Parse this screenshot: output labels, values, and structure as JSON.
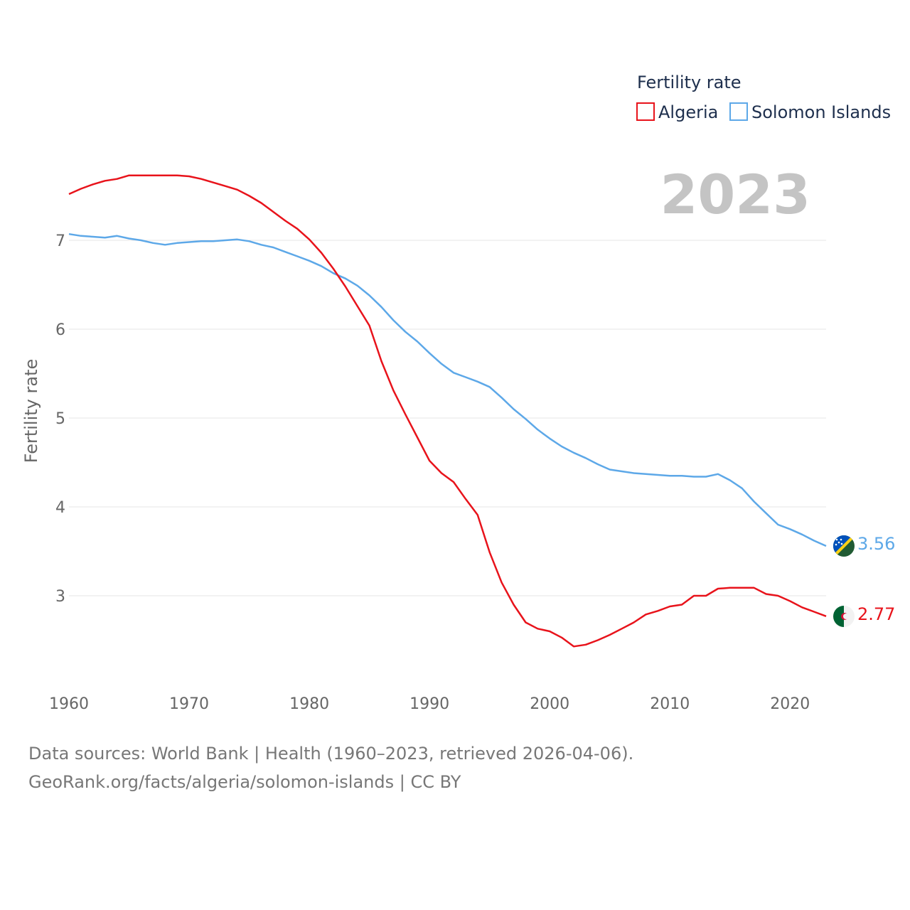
{
  "chart_data": {
    "type": "line",
    "title": "",
    "ylabel": "Fertility rate",
    "xlabel": "",
    "year_label": "2023",
    "legend": {
      "title": "Fertility rate",
      "placement": "top-right"
    },
    "xlim": [
      1960,
      2023
    ],
    "ylim": [
      2.0,
      7.9
    ],
    "x_ticks": [
      1960,
      1970,
      1980,
      1990,
      2000,
      2010,
      2020
    ],
    "y_ticks": [
      3,
      4,
      5,
      6,
      7
    ],
    "x": [
      1960,
      1961,
      1962,
      1963,
      1964,
      1965,
      1966,
      1967,
      1968,
      1969,
      1970,
      1971,
      1972,
      1973,
      1974,
      1975,
      1976,
      1977,
      1978,
      1979,
      1980,
      1981,
      1982,
      1983,
      1984,
      1985,
      1986,
      1987,
      1988,
      1989,
      1990,
      1991,
      1992,
      1993,
      1994,
      1995,
      1996,
      1997,
      1998,
      1999,
      2000,
      2001,
      2002,
      2003,
      2004,
      2005,
      2006,
      2007,
      2008,
      2009,
      2010,
      2011,
      2012,
      2013,
      2014,
      2015,
      2016,
      2017,
      2018,
      2019,
      2020,
      2021,
      2022,
      2023
    ],
    "series": [
      {
        "name": "Algeria",
        "color": "#e8131b",
        "end_label": "2.77",
        "values": [
          7.52,
          7.58,
          7.63,
          7.67,
          7.69,
          7.73,
          7.73,
          7.73,
          7.73,
          7.73,
          7.72,
          7.69,
          7.65,
          7.61,
          7.57,
          7.5,
          7.42,
          7.32,
          7.22,
          7.13,
          7.01,
          6.86,
          6.68,
          6.48,
          6.26,
          6.04,
          5.64,
          5.31,
          5.04,
          4.78,
          4.52,
          4.38,
          4.28,
          4.09,
          3.91,
          3.49,
          3.15,
          2.9,
          2.7,
          2.63,
          2.6,
          2.53,
          2.43,
          2.45,
          2.5,
          2.56,
          2.63,
          2.7,
          2.79,
          2.83,
          2.88,
          2.9,
          3.0,
          3.0,
          3.08,
          3.09,
          3.09,
          3.09,
          3.02,
          3.0,
          2.94,
          2.87,
          2.82,
          2.77
        ]
      },
      {
        "name": "Solomon Islands",
        "color": "#5da8e8",
        "end_label": "3.56",
        "values": [
          7.07,
          7.05,
          7.04,
          7.03,
          7.05,
          7.02,
          7.0,
          6.97,
          6.95,
          6.97,
          6.98,
          6.99,
          6.99,
          7.0,
          7.01,
          6.99,
          6.95,
          6.92,
          6.87,
          6.82,
          6.77,
          6.71,
          6.63,
          6.57,
          6.49,
          6.38,
          6.25,
          6.1,
          5.97,
          5.86,
          5.73,
          5.61,
          5.51,
          5.46,
          5.41,
          5.35,
          5.23,
          5.1,
          4.99,
          4.87,
          4.77,
          4.68,
          4.61,
          4.55,
          4.48,
          4.42,
          4.4,
          4.38,
          4.37,
          4.36,
          4.35,
          4.35,
          4.34,
          4.34,
          4.37,
          4.3,
          4.21,
          4.06,
          3.93,
          3.8,
          3.75,
          3.69,
          3.62,
          3.56
        ]
      }
    ]
  },
  "source": {
    "line1": "Data sources: World Bank | Health (1960–2023, retrieved 2026-04-06).",
    "line2": "GeoRank.org/facts/algeria/solomon-islands | CC BY"
  }
}
